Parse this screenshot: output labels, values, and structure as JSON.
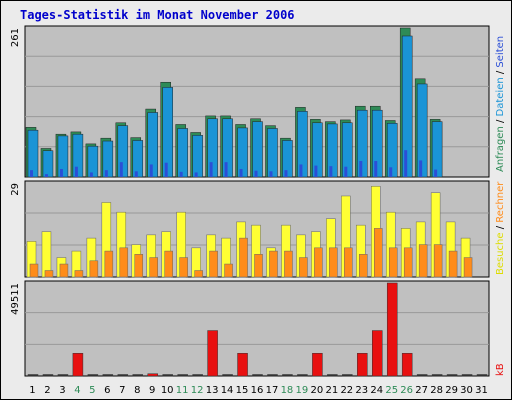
{
  "title": "Tages-Statistik im Monat November 2006",
  "colors": {
    "background": "#ebebeb",
    "panel": "#c0c0c0",
    "grid": "#999999",
    "title": "#0000cc",
    "weekday_label": "#000000",
    "weekend_label": "#2e8b57",
    "requests": "#2e8b57",
    "files": "#1a94d6",
    "pages": "#2b4fd6",
    "visits": "#ffff33",
    "sites": "#ff8c1a",
    "kb": "#e81010"
  },
  "legend": {
    "top": [
      {
        "text": "Anfragen",
        "color": "#2e8b57"
      },
      {
        "text": " / ",
        "color": "#000000"
      },
      {
        "text": "Dateien",
        "color": "#1a94d6"
      },
      {
        "text": " / ",
        "color": "#000000"
      },
      {
        "text": "Seiten",
        "color": "#2b4fd6"
      }
    ],
    "middle": [
      {
        "text": "Besuche",
        "color": "#dddd00"
      },
      {
        "text": " / ",
        "color": "#000000"
      },
      {
        "text": "Rechner",
        "color": "#ff8c1a"
      }
    ],
    "bottom": [
      {
        "text": "kB",
        "color": "#e81010"
      }
    ]
  },
  "chart_data": {
    "type": "bar",
    "days": [
      "1",
      "2",
      "3",
      "4",
      "5",
      "6",
      "7",
      "8",
      "9",
      "10",
      "11",
      "12",
      "13",
      "14",
      "15",
      "16",
      "17",
      "18",
      "19",
      "20",
      "21",
      "22",
      "23",
      "24",
      "25",
      "26",
      "27",
      "28",
      "29",
      "30",
      "31"
    ],
    "weekend_days": [
      "4",
      "5",
      "11",
      "12",
      "18",
      "19",
      "25",
      "26"
    ],
    "panels": [
      {
        "id": "requests",
        "ymax_label": "261",
        "ymax": 261,
        "series": [
          {
            "name": "Anfragen",
            "values": [
              87,
              50,
              75,
              79,
              58,
              68,
              95,
              69,
              119,
              166,
              92,
              78,
              107,
              107,
              92,
              102,
              90,
              68,
              122,
              101,
              97,
              100,
              124,
              124,
              99,
              261,
              172,
              101,
              0,
              0,
              0
            ]
          },
          {
            "name": "Dateien",
            "values": [
              82,
              46,
              72,
              75,
              54,
              63,
              90,
              64,
              113,
              157,
              85,
              73,
              102,
              102,
              86,
              97,
              85,
              64,
              115,
              95,
              93,
              95,
              117,
              117,
              94,
              247,
              163,
              97,
              0,
              0,
              0
            ]
          },
          {
            "name": "Seiten",
            "values": [
              12,
              5,
              14,
              18,
              8,
              12,
              26,
              10,
              22,
              25,
              9,
              8,
              26,
              26,
              14,
              11,
              10,
              12,
              22,
              20,
              19,
              18,
              28,
              28,
              17,
              47,
              29,
              13,
              0,
              0,
              0
            ]
          }
        ]
      },
      {
        "id": "visits",
        "ymax_label": "29",
        "ymax": 29,
        "series": [
          {
            "name": "Besuche",
            "values": [
              11,
              14,
              6,
              8,
              12,
              23,
              20,
              10,
              13,
              14,
              20,
              9,
              13,
              12,
              17,
              16,
              9,
              16,
              13,
              14,
              18,
              25,
              16,
              28,
              20,
              15,
              17,
              26,
              17,
              12,
              0
            ]
          },
          {
            "name": "Rechner",
            "values": [
              4,
              2,
              4,
              2,
              5,
              8,
              9,
              7,
              6,
              8,
              6,
              2,
              8,
              4,
              12,
              7,
              8,
              8,
              6,
              9,
              9,
              9,
              7,
              15,
              9,
              9,
              10,
              10,
              8,
              6,
              0
            ]
          }
        ]
      },
      {
        "id": "kb",
        "ymax_label": "49511",
        "ymax": 49511,
        "series": [
          {
            "name": "kB",
            "values": [
              0,
              0,
              0,
              12100,
              0,
              0,
              0,
              0,
              1200,
              0,
              0,
              0,
              24200,
              0,
              12100,
              0,
              0,
              0,
              0,
              12100,
              0,
              0,
              12100,
              24200,
              49511,
              12100,
              0,
              0,
              0,
              0,
              0
            ]
          }
        ]
      }
    ]
  }
}
